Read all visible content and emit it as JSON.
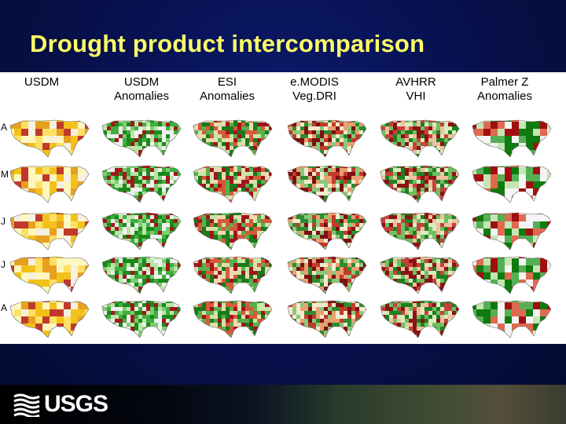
{
  "slide": {
    "title": "Drought product intercomparison"
  },
  "columns": [
    {
      "line1": "USDM",
      "line2": ""
    },
    {
      "line1": "USDM",
      "line2": "Anomalies"
    },
    {
      "line1": "ESI",
      "line2": "Anomalies"
    },
    {
      "line1": "e.MODIS",
      "line2": "Veg.DRI"
    },
    {
      "line1": "AVHRR",
      "line2": "VHI"
    },
    {
      "line1": "Palmer Z",
      "line2": "Anomalies"
    }
  ],
  "rows": [
    "A",
    "M",
    "J",
    "J",
    "A"
  ],
  "footer": {
    "logo_text": "USGS"
  },
  "colors": {
    "title": "#ffff66",
    "background": "#07104a",
    "dry": "#b3001e",
    "wet": "#1a8a1a",
    "usdm_dry": "#f3c11a"
  }
}
